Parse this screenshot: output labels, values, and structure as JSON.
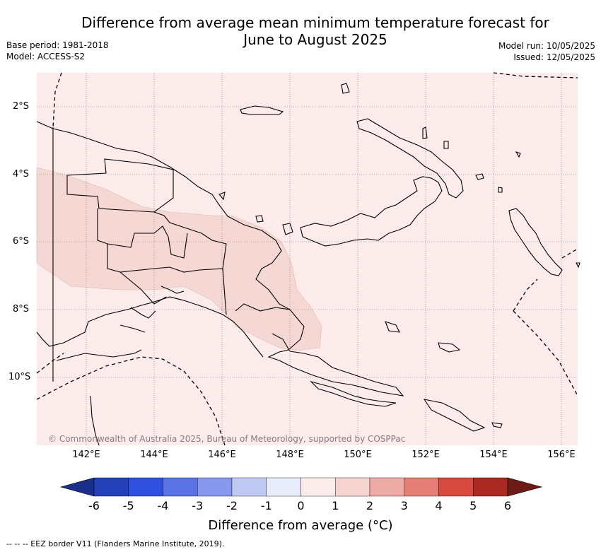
{
  "title_line1": "Difference from average mean minimum temperature forecast for",
  "title_line2": "June to August 2025",
  "base_period": "Base period: 1981-2018",
  "model": "Model: ACCESS-S2",
  "model_run": "Model run: 10/05/2025",
  "issued": "Issued: 12/05/2025",
  "lat_labels": [
    "2°S",
    "4°S",
    "6°S",
    "8°S",
    "10°S"
  ],
  "lon_labels": [
    "142°E",
    "144°E",
    "146°E",
    "148°E",
    "150°E",
    "152°E",
    "154°E",
    "156°E"
  ],
  "copyright": "© Commonwealth of Australia 2025, Bureau of Meteorology, supported by COSPPac",
  "colorbar": {
    "ticks": [
      "-6",
      "-5",
      "-4",
      "-3",
      "-2",
      "-1",
      "0",
      "1",
      "2",
      "3",
      "4",
      "5",
      "6"
    ],
    "colors": [
      "#1a2e8c",
      "#2440b8",
      "#2f4fde",
      "#5a74e6",
      "#8697ed",
      "#c0c9f4",
      "#e8ecfb",
      "#fbebea",
      "#f5d3cf",
      "#eeaaa4",
      "#e57f76",
      "#d94a3e",
      "#aa2a22",
      "#6e1a16"
    ],
    "title": "Difference from average (°C)"
  },
  "legend_footnote": "-- -- -- EEZ border V11 (Flanders Marine Institute, 2019).",
  "map_colors": {
    "background": "#fbebea",
    "warmer_zone": "#f5d8d4",
    "coast": "#000000"
  }
}
